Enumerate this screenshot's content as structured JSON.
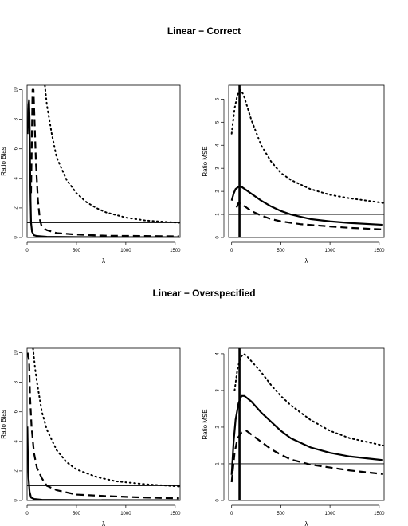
{
  "titles": [
    "Linear − Correct",
    "Linear − Overspecified"
  ],
  "chart_data": [
    {
      "type": "line",
      "section": "Linear − Correct",
      "xlabel": "λ",
      "ylabel": "Ratio Bias",
      "xlim": [
        0,
        1550
      ],
      "ylim": [
        0,
        10.3
      ],
      "xticks": [
        0,
        500,
        1000,
        1500
      ],
      "yticks": [
        0,
        2,
        4,
        6,
        8,
        10
      ],
      "hline": 1,
      "vline": null,
      "series": [
        {
          "style": "solid",
          "points": [
            [
              5,
              7.0
            ],
            [
              10,
              8.0
            ],
            [
              15,
              9.0
            ],
            [
              20,
              9.3
            ],
            [
              25,
              8.0
            ],
            [
              30,
              5.0
            ],
            [
              35,
              2.5
            ],
            [
              40,
              1.0
            ],
            [
              50,
              0.4
            ],
            [
              70,
              0.15
            ],
            [
              100,
              0.1
            ],
            [
              200,
              0.05
            ],
            [
              500,
              0.03
            ],
            [
              1000,
              0.02
            ],
            [
              1540,
              0.02
            ]
          ]
        },
        {
          "style": "dashed",
          "points": [
            [
              40,
              3.0
            ],
            [
              48,
              6.5
            ],
            [
              55,
              10.0
            ],
            [
              65,
              10.0
            ],
            [
              75,
              8.0
            ],
            [
              90,
              5.0
            ],
            [
              110,
              2.5
            ],
            [
              130,
              1.2
            ],
            [
              150,
              0.7
            ],
            [
              200,
              0.5
            ],
            [
              300,
              0.3
            ],
            [
              500,
              0.2
            ],
            [
              800,
              0.12
            ],
            [
              1200,
              0.1
            ],
            [
              1540,
              0.08
            ]
          ]
        },
        {
          "style": "dotted",
          "points": [
            [
              180,
              10.3
            ],
            [
              200,
              9.0
            ],
            [
              250,
              7.0
            ],
            [
              300,
              5.4
            ],
            [
              400,
              3.9
            ],
            [
              500,
              3.0
            ],
            [
              600,
              2.4
            ],
            [
              700,
              2.0
            ],
            [
              800,
              1.7
            ],
            [
              1000,
              1.35
            ],
            [
              1200,
              1.15
            ],
            [
              1540,
              1.0
            ]
          ]
        }
      ]
    },
    {
      "type": "line",
      "section": "Linear − Correct",
      "xlabel": "λ",
      "ylabel": "Ratio MSE",
      "xlim": [
        -30,
        1550
      ],
      "ylim": [
        0,
        6.6
      ],
      "xticks": [
        0,
        500,
        1000,
        1500
      ],
      "yticks": [
        0,
        1,
        2,
        3,
        4,
        5,
        6
      ],
      "hline": 1,
      "vline": 80,
      "series": [
        {
          "style": "solid",
          "points": [
            [
              0,
              1.6
            ],
            [
              20,
              1.9
            ],
            [
              40,
              2.1
            ],
            [
              70,
              2.2
            ],
            [
              100,
              2.2
            ],
            [
              150,
              2.05
            ],
            [
              200,
              1.9
            ],
            [
              300,
              1.6
            ],
            [
              400,
              1.35
            ],
            [
              500,
              1.15
            ],
            [
              600,
              1.0
            ],
            [
              800,
              0.8
            ],
            [
              1000,
              0.7
            ],
            [
              1200,
              0.63
            ],
            [
              1540,
              0.55
            ]
          ]
        },
        {
          "style": "dashed",
          "points": [
            [
              50,
              1.3
            ],
            [
              70,
              1.5
            ],
            [
              100,
              1.45
            ],
            [
              150,
              1.3
            ],
            [
              200,
              1.15
            ],
            [
              300,
              0.95
            ],
            [
              400,
              0.8
            ],
            [
              500,
              0.7
            ],
            [
              700,
              0.58
            ],
            [
              1000,
              0.48
            ],
            [
              1200,
              0.42
            ],
            [
              1540,
              0.35
            ]
          ]
        },
        {
          "style": "dotted",
          "points": [
            [
              0,
              4.5
            ],
            [
              30,
              5.6
            ],
            [
              60,
              6.2
            ],
            [
              90,
              6.4
            ],
            [
              120,
              6.2
            ],
            [
              200,
              5.1
            ],
            [
              300,
              4.0
            ],
            [
              400,
              3.3
            ],
            [
              500,
              2.8
            ],
            [
              600,
              2.5
            ],
            [
              800,
              2.1
            ],
            [
              1000,
              1.85
            ],
            [
              1200,
              1.7
            ],
            [
              1540,
              1.5
            ]
          ]
        }
      ]
    },
    {
      "type": "line",
      "section": "Linear − Overspecified",
      "xlabel": "λ",
      "ylabel": "Ratio Bias",
      "xlim": [
        0,
        1550
      ],
      "ylim": [
        0,
        10.3
      ],
      "xticks": [
        0,
        500,
        1000,
        1500
      ],
      "yticks": [
        0,
        2,
        4,
        6,
        8,
        10
      ],
      "hline": 1,
      "vline": null,
      "series": [
        {
          "style": "solid",
          "points": [
            [
              3,
              5.0
            ],
            [
              8,
              3.0
            ],
            [
              15,
              1.5
            ],
            [
              25,
              0.6
            ],
            [
              40,
              0.2
            ],
            [
              70,
              0.1
            ],
            [
              150,
              0.05
            ],
            [
              500,
              0.03
            ],
            [
              1000,
              0.02
            ],
            [
              1540,
              0.02
            ]
          ]
        },
        {
          "style": "dashed",
          "points": [
            [
              5,
              10.0
            ],
            [
              20,
              9.5
            ],
            [
              30,
              7.0
            ],
            [
              45,
              5.0
            ],
            [
              70,
              3.2
            ],
            [
              100,
              2.2
            ],
            [
              150,
              1.5
            ],
            [
              200,
              1.0
            ],
            [
              300,
              0.7
            ],
            [
              500,
              0.4
            ],
            [
              800,
              0.3
            ],
            [
              1200,
              0.2
            ],
            [
              1540,
              0.15
            ]
          ]
        },
        {
          "style": "dotted",
          "points": [
            [
              60,
              10.3
            ],
            [
              80,
              9.0
            ],
            [
              100,
              8.0
            ],
            [
              150,
              6.0
            ],
            [
              200,
              4.8
            ],
            [
              300,
              3.4
            ],
            [
              400,
              2.6
            ],
            [
              500,
              2.1
            ],
            [
              700,
              1.6
            ],
            [
              900,
              1.3
            ],
            [
              1200,
              1.1
            ],
            [
              1540,
              0.95
            ]
          ]
        }
      ]
    },
    {
      "type": "line",
      "section": "Linear − Overspecified",
      "xlabel": "λ",
      "ylabel": "Ratio MSE",
      "xlim": [
        -30,
        1550
      ],
      "ylim": [
        0,
        4.15
      ],
      "xticks": [
        0,
        500,
        1000,
        1500
      ],
      "yticks": [
        0,
        1,
        2,
        3,
        4
      ],
      "hline": 1,
      "vline": 80,
      "series": [
        {
          "style": "solid",
          "points": [
            [
              0,
              0.7
            ],
            [
              20,
              1.6
            ],
            [
              40,
              2.2
            ],
            [
              70,
              2.65
            ],
            [
              100,
              2.85
            ],
            [
              130,
              2.85
            ],
            [
              200,
              2.7
            ],
            [
              300,
              2.4
            ],
            [
              400,
              2.15
            ],
            [
              500,
              1.9
            ],
            [
              600,
              1.7
            ],
            [
              800,
              1.45
            ],
            [
              1000,
              1.3
            ],
            [
              1200,
              1.2
            ],
            [
              1540,
              1.1
            ]
          ]
        },
        {
          "style": "dashed",
          "points": [
            [
              0,
              0.5
            ],
            [
              30,
              1.3
            ],
            [
              60,
              1.7
            ],
            [
              100,
              1.85
            ],
            [
              150,
              1.9
            ],
            [
              200,
              1.8
            ],
            [
              300,
              1.6
            ],
            [
              400,
              1.4
            ],
            [
              500,
              1.25
            ],
            [
              600,
              1.12
            ],
            [
              800,
              0.98
            ],
            [
              1000,
              0.9
            ],
            [
              1200,
              0.82
            ],
            [
              1540,
              0.72
            ]
          ]
        },
        {
          "style": "dotted",
          "points": [
            [
              30,
              3.0
            ],
            [
              60,
              3.6
            ],
            [
              90,
              3.9
            ],
            [
              120,
              4.0
            ],
            [
              150,
              3.95
            ],
            [
              200,
              3.8
            ],
            [
              300,
              3.5
            ],
            [
              400,
              3.15
            ],
            [
              500,
              2.85
            ],
            [
              600,
              2.6
            ],
            [
              800,
              2.2
            ],
            [
              1000,
              1.9
            ],
            [
              1200,
              1.7
            ],
            [
              1540,
              1.5
            ]
          ]
        }
      ]
    }
  ]
}
